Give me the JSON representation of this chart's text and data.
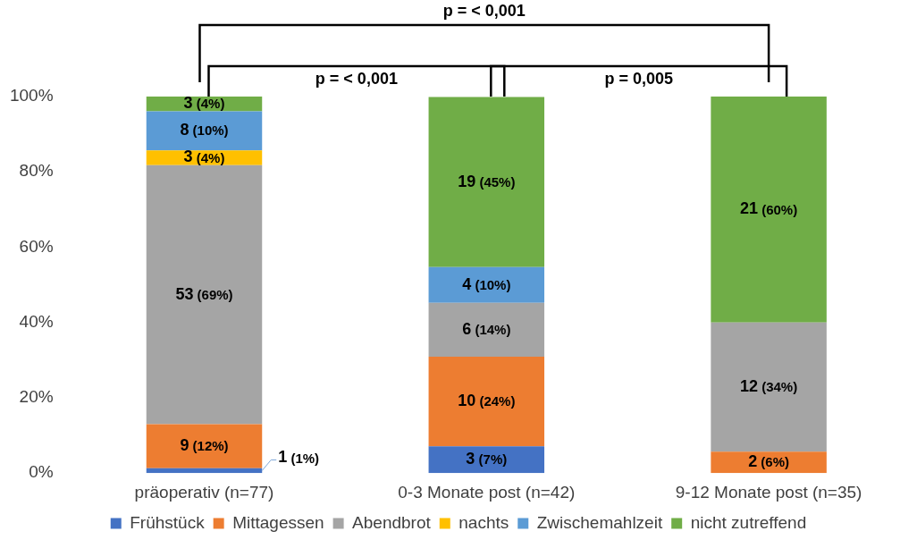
{
  "chart_data": {
    "type": "bar",
    "stacked": true,
    "categories": [
      "präoperativ (n=77)",
      "0-3 Monate post (n=42)",
      "9-12 Monate post (n=35)"
    ],
    "series": [
      {
        "name": "Frühstück",
        "color": "#4472c4",
        "values": [
          1.3,
          7.1,
          0
        ],
        "value_labels": [
          "1 (1%)",
          "3 (7%)",
          null
        ]
      },
      {
        "name": "Mittagessen",
        "color": "#ed7d31",
        "values": [
          11.7,
          23.8,
          5.7
        ],
        "value_labels": [
          "9 (12%)",
          "10 (24%)",
          "2 (6%)"
        ]
      },
      {
        "name": "Abendbrot",
        "color": "#a5a5a5",
        "values": [
          68.8,
          14.3,
          34.3
        ],
        "value_labels": [
          "53 (69%)",
          "6 (14%)",
          "12 (34%)"
        ]
      },
      {
        "name": "nachts",
        "color": "#ffc000",
        "values": [
          3.9,
          0,
          0
        ],
        "value_labels": [
          "3 (4%)",
          null,
          null
        ]
      },
      {
        "name": "Zwischemahlzeit",
        "color": "#5b9bd5",
        "values": [
          10.4,
          9.5,
          0
        ],
        "value_labels": [
          "8 (10%)",
          "4 (10%)",
          null
        ]
      },
      {
        "name": "nicht zutreffend",
        "color": "#70ad47",
        "values": [
          3.9,
          45.2,
          60
        ],
        "value_labels": [
          "3 (4%)",
          "19 (45%)",
          "21 (60%)"
        ]
      }
    ],
    "ylim": [
      0,
      100
    ],
    "yticks": [
      {
        "value": 0,
        "label": "0%"
      },
      {
        "value": 20,
        "label": "20%"
      },
      {
        "value": 40,
        "label": "40%"
      },
      {
        "value": 60,
        "label": "60%"
      },
      {
        "value": 80,
        "label": "80%"
      },
      {
        "value": 100,
        "label": "100%"
      }
    ],
    "grid": false,
    "legend": "bottom",
    "annotations": [
      "p = < 0,001",
      "p = < 0,001",
      "p = 0,005"
    ]
  }
}
